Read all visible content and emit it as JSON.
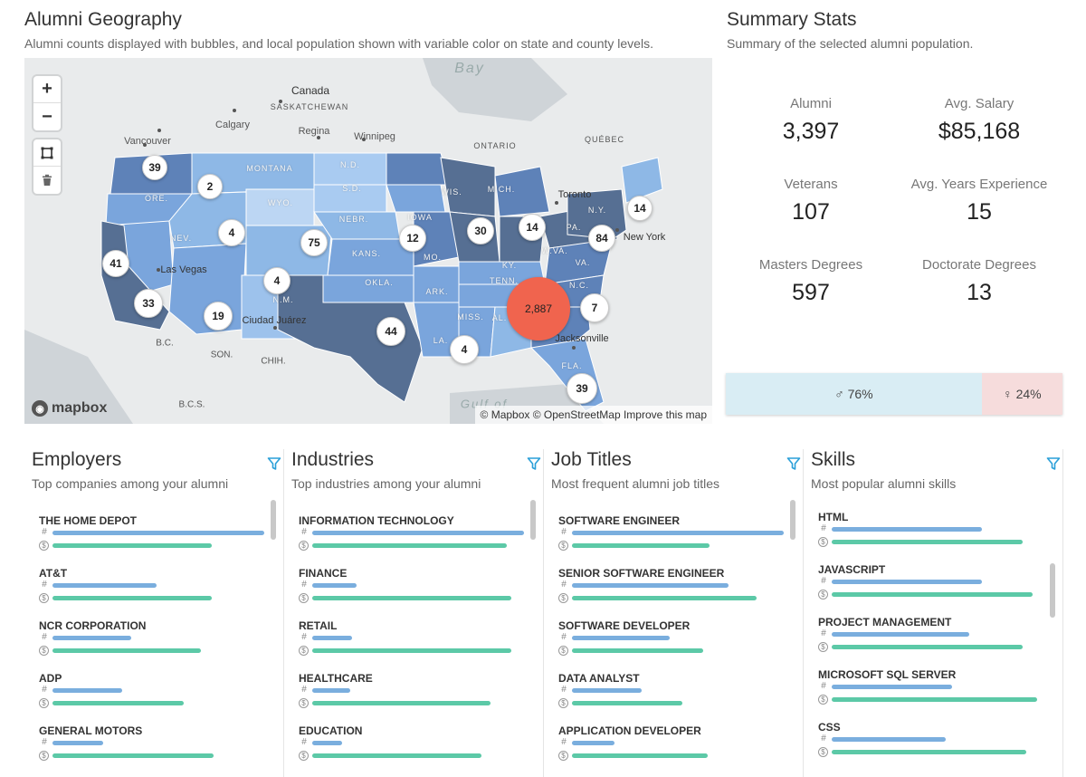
{
  "geography": {
    "title": "Alumni Geography",
    "subtitle": "Alumni counts displayed with bubbles, and local population shown with variable color on state and county levels.",
    "controls": {
      "zoom_in": "+",
      "zoom_out": "−"
    },
    "places": [
      "Bay",
      "Canada",
      "SASKATCHEWAN",
      "Calgary",
      "Regina",
      "Winnipeg",
      "ONTARIO",
      "QUÉBEC",
      "Vancouver",
      "Toronto",
      "New York",
      "Las Vegas",
      "Ciudad Juárez",
      "B.C.",
      "SON.",
      "CHIH.",
      "Jacksonville",
      "Gulf of",
      "B.C.S."
    ],
    "states": [
      "MONTANA",
      "N.D.",
      "ORE.",
      "S.D.",
      "WIS.",
      "MICH.",
      "WYO.",
      "NEBR.",
      "IOWA",
      "N.Y.",
      "NEV.",
      "KANS.",
      "MO.",
      "PA.",
      "W.VA.",
      "KY.",
      "VA.",
      "OKLA.",
      "ARK.",
      "TENN.",
      "N.C.",
      "N.M.",
      "MISS.",
      "AL.",
      "LA.",
      "FLA."
    ],
    "bubbles": [
      "39",
      "2",
      "4",
      "75",
      "12",
      "30",
      "14",
      "14",
      "84",
      "41",
      "4",
      "33",
      "19",
      "44",
      "2,887",
      "7",
      "4",
      "39"
    ],
    "logo": "mapbox",
    "attribution": "© Mapbox © OpenStreetMap Improve this map"
  },
  "summary": {
    "title": "Summary Stats",
    "subtitle": "Summary of the selected alumni population.",
    "stats": [
      {
        "label": "Alumni",
        "value": "3,397"
      },
      {
        "label": "Avg. Salary",
        "value": "$85,168"
      },
      {
        "label": "Veterans",
        "value": "107"
      },
      {
        "label": "Avg. Years Experience",
        "value": "15"
      },
      {
        "label": "Masters Degrees",
        "value": "597"
      },
      {
        "label": "Doctorate Degrees",
        "value": "13"
      }
    ],
    "gender": {
      "male": "76%",
      "female": "24%",
      "male_share": 0.76
    }
  },
  "lists": [
    {
      "title": "Employers",
      "subtitle": "Top companies among your alumni",
      "items": [
        {
          "name": "THE HOME DEPOT",
          "count": 1.0,
          "salary": 0.75
        },
        {
          "name": "AT&T",
          "count": 0.49,
          "salary": 0.75
        },
        {
          "name": "NCR CORPORATION",
          "count": 0.37,
          "salary": 0.7
        },
        {
          "name": "ADP",
          "count": 0.33,
          "salary": 0.62
        },
        {
          "name": "GENERAL MOTORS",
          "count": 0.24,
          "salary": 0.76
        }
      ]
    },
    {
      "title": "Industries",
      "subtitle": "Top industries among your alumni",
      "items": [
        {
          "name": "INFORMATION TECHNOLOGY",
          "count": 1.0,
          "salary": 0.92
        },
        {
          "name": "FINANCE",
          "count": 0.21,
          "salary": 0.94
        },
        {
          "name": "RETAIL",
          "count": 0.19,
          "salary": 0.94
        },
        {
          "name": "HEALTHCARE",
          "count": 0.18,
          "salary": 0.84
        },
        {
          "name": "EDUCATION",
          "count": 0.14,
          "salary": 0.8
        }
      ]
    },
    {
      "title": "Job Titles",
      "subtitle": "Most frequent alumni job titles",
      "items": [
        {
          "name": "SOFTWARE ENGINEER",
          "count": 1.0,
          "salary": 0.65
        },
        {
          "name": "SENIOR SOFTWARE ENGINEER",
          "count": 0.74,
          "salary": 0.87
        },
        {
          "name": "SOFTWARE DEVELOPER",
          "count": 0.46,
          "salary": 0.62
        },
        {
          "name": "DATA ANALYST",
          "count": 0.33,
          "salary": 0.52
        },
        {
          "name": "APPLICATION DEVELOPER",
          "count": 0.2,
          "salary": 0.64
        }
      ]
    },
    {
      "title": "Skills",
      "subtitle": "Most popular alumni skills",
      "items": [
        {
          "name": "HTML",
          "count": 0.71,
          "salary": 0.9
        },
        {
          "name": "JAVASCRIPT",
          "count": 0.71,
          "salary": 0.95
        },
        {
          "name": "PROJECT MANAGEMENT",
          "count": 0.65,
          "salary": 0.9
        },
        {
          "name": "MICROSOFT SQL SERVER",
          "count": 0.57,
          "salary": 0.97
        },
        {
          "name": "CSS",
          "count": 0.54,
          "salary": 0.92
        }
      ]
    }
  ],
  "icons": {
    "count": "#",
    "salary": "$",
    "male": "♂",
    "female": "♀"
  },
  "colors": {
    "count_bar": "#7aaede",
    "salary_bar": "#5cc9a7",
    "highlight_bubble": "#f0644e",
    "male_bg": "#d9edf4",
    "female_bg": "#f6dcdc"
  }
}
